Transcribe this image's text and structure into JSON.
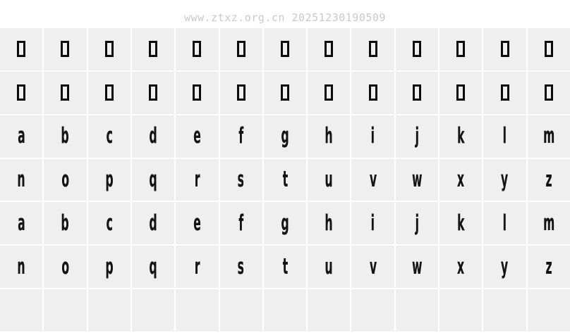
{
  "watermark": {
    "text": "www.ztxz.org.cn 20251230190509"
  },
  "colors": {
    "page_bg": "#ffffff",
    "cell_bg": "#efefef",
    "glyph": "#141414",
    "watermark": "#c9c9c9",
    "notdef_stroke": "#0a0a0a"
  },
  "glyph_grid": {
    "columns": 13,
    "rows": [
      {
        "name": "notdef-row-1",
        "type": "notdef",
        "cells": [
          "",
          "",
          "",
          "",
          "",
          "",
          "",
          "",
          "",
          "",
          "",
          "",
          ""
        ]
      },
      {
        "name": "notdef-row-2",
        "type": "notdef",
        "cells": [
          "",
          "",
          "",
          "",
          "",
          "",
          "",
          "",
          "",
          "",
          "",
          "",
          ""
        ]
      },
      {
        "name": "lowercase-a-m",
        "type": "letter",
        "cells": [
          "a",
          "b",
          "c",
          "d",
          "e",
          "f",
          "g",
          "h",
          "i",
          "j",
          "k",
          "l",
          "m"
        ]
      },
      {
        "name": "lowercase-n-z",
        "type": "letter",
        "cells": [
          "n",
          "o",
          "p",
          "q",
          "r",
          "s",
          "t",
          "u",
          "v",
          "w",
          "x",
          "y",
          "z"
        ]
      },
      {
        "name": "uppercase-mapped-a-m",
        "type": "letter",
        "cells": [
          "a",
          "b",
          "c",
          "d",
          "e",
          "f",
          "g",
          "h",
          "i",
          "j",
          "k",
          "l",
          "m"
        ]
      },
      {
        "name": "uppercase-mapped-n-z",
        "type": "letter",
        "cells": [
          "n",
          "o",
          "p",
          "q",
          "r",
          "s",
          "t",
          "u",
          "v",
          "w",
          "x",
          "y",
          "z"
        ]
      },
      {
        "name": "empty-row",
        "type": "empty",
        "cells": [
          "",
          "",
          "",
          "",
          "",
          "",
          "",
          "",
          "",
          "",
          "",
          "",
          ""
        ]
      }
    ]
  }
}
